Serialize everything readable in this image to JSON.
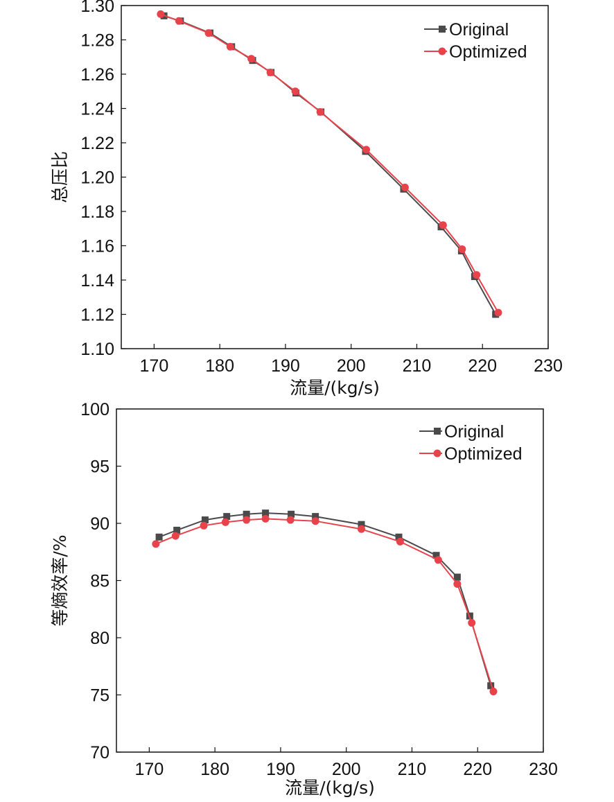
{
  "chart_data": [
    {
      "type": "line",
      "title": "",
      "xlabel": "流量/(kg/s)",
      "ylabel": "总压比",
      "xlim": [
        165,
        230
      ],
      "ylim": [
        1.1,
        1.3
      ],
      "xticks": [
        "170",
        "180",
        "190",
        "200",
        "210",
        "220",
        "230"
      ],
      "yticks": [
        "1.10",
        "1.12",
        "1.14",
        "1.16",
        "1.18",
        "1.20",
        "1.22",
        "1.24",
        "1.26",
        "1.28",
        "1.30"
      ],
      "grid": false,
      "legend": "top-right",
      "series": [
        {
          "name": "Original",
          "color": "#4a4a4a",
          "marker": "square",
          "x": [
            171.5,
            174.0,
            178.5,
            181.8,
            185.0,
            187.8,
            191.6,
            195.4,
            202.2,
            208.0,
            213.7,
            216.8,
            218.8,
            222.0
          ],
          "y": [
            1.294,
            1.291,
            1.284,
            1.276,
            1.268,
            1.261,
            1.249,
            1.238,
            1.215,
            1.193,
            1.171,
            1.157,
            1.142,
            1.12
          ]
        },
        {
          "name": "Optimized",
          "color": "#e8434b",
          "marker": "circle",
          "x": [
            171.0,
            173.8,
            178.3,
            181.6,
            184.8,
            187.7,
            191.5,
            195.3,
            202.3,
            208.2,
            214.0,
            216.9,
            219.1,
            222.4
          ],
          "y": [
            1.295,
            1.291,
            1.284,
            1.276,
            1.269,
            1.261,
            1.25,
            1.238,
            1.216,
            1.194,
            1.172,
            1.158,
            1.143,
            1.121
          ]
        }
      ]
    },
    {
      "type": "line",
      "title": "",
      "xlabel": "流量/(kg/s)",
      "ylabel": "等熵效率/%",
      "xlim": [
        165,
        230
      ],
      "ylim": [
        70,
        100
      ],
      "xticks": [
        "170",
        "180",
        "190",
        "200",
        "210",
        "220",
        "230"
      ],
      "yticks": [
        "70",
        "75",
        "80",
        "85",
        "90",
        "95",
        "100"
      ],
      "grid": false,
      "legend": "top-right",
      "series": [
        {
          "name": "Original",
          "color": "#4a4a4a",
          "marker": "square",
          "x": [
            171.5,
            174.2,
            178.5,
            181.8,
            184.8,
            187.7,
            191.6,
            195.3,
            202.3,
            208.0,
            213.7,
            216.9,
            218.8,
            222.0
          ],
          "y": [
            88.8,
            89.4,
            90.3,
            90.6,
            90.8,
            90.9,
            90.8,
            90.6,
            89.9,
            88.8,
            87.2,
            85.3,
            81.9,
            75.8
          ]
        },
        {
          "name": "Optimized",
          "color": "#e8434b",
          "marker": "circle",
          "x": [
            171.0,
            174.0,
            178.3,
            181.6,
            184.8,
            187.7,
            191.5,
            195.3,
            202.3,
            208.2,
            214.0,
            216.9,
            219.1,
            222.4
          ],
          "y": [
            88.2,
            88.9,
            89.8,
            90.1,
            90.3,
            90.4,
            90.3,
            90.2,
            89.5,
            88.4,
            86.8,
            84.7,
            81.3,
            75.3
          ]
        }
      ]
    }
  ]
}
